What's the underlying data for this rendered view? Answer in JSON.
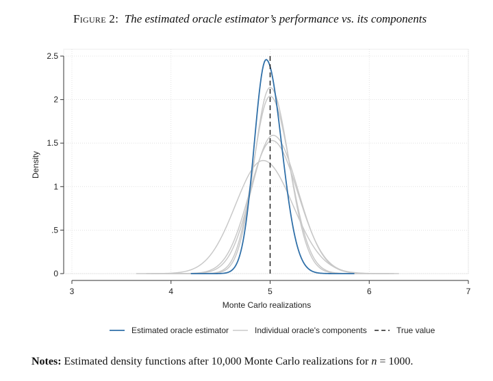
{
  "caption": {
    "figure_label": "Figure 2:",
    "title": "The estimated oracle estimator’s performance vs. its components"
  },
  "notes": {
    "label": "Notes:",
    "text_before": "Estimated density functions after 10,000 Monte Carlo realizations for ",
    "var": "n",
    "text_after": " = 1000."
  },
  "chart_data": {
    "type": "line",
    "xlabel": "Monte Carlo realizations",
    "ylabel": "Density",
    "xlim": [
      3,
      7
    ],
    "ylim": [
      0,
      2.5
    ],
    "x_ticks": [
      3,
      4,
      5,
      6,
      7
    ],
    "y_ticks": [
      0,
      0.5,
      1,
      1.5,
      2,
      2.5
    ],
    "x_tick_labels": [
      "3",
      "4",
      "5",
      "6",
      "7"
    ],
    "y_tick_labels": [
      "0",
      ".5",
      "1",
      "1.5",
      "2",
      "2.5"
    ],
    "grid": true,
    "legend_position": "bottom",
    "true_value": 5,
    "colors": {
      "oracle": "#2f6fa8",
      "components": "#c8c8c8",
      "true_value": "#222222"
    },
    "series": [
      {
        "name": "Estimated oracle estimator",
        "role": "oracle",
        "mean": 4.96,
        "peak": 2.46,
        "sd_left": 0.12,
        "sd_right": 0.155,
        "start": 4.2,
        "end": 5.85
      },
      {
        "name": "Individual oracle's components",
        "role": "component",
        "mean": 5.0,
        "peak": 2.14,
        "sd_left": 0.16,
        "sd_right": 0.19,
        "start": 4.0,
        "end": 6.0
      },
      {
        "role": "component",
        "mean": 5.0,
        "peak": 2.04,
        "sd_left": 0.17,
        "sd_right": 0.2,
        "start": 3.95,
        "end": 6.05
      },
      {
        "role": "component",
        "mean": 5.03,
        "peak": 1.59,
        "sd_left": 0.22,
        "sd_right": 0.25,
        "start": 3.8,
        "end": 6.2
      },
      {
        "role": "component",
        "mean": 5.02,
        "peak": 1.53,
        "sd_left": 0.23,
        "sd_right": 0.26,
        "start": 3.75,
        "end": 6.25
      },
      {
        "role": "component",
        "mean": 4.93,
        "peak": 1.3,
        "sd_left": 0.28,
        "sd_right": 0.3,
        "start": 3.65,
        "end": 6.3
      }
    ],
    "legend": [
      {
        "label": "Estimated oracle estimator",
        "role": "oracle"
      },
      {
        "label": "Individual oracle's components",
        "role": "component"
      },
      {
        "label": "True value",
        "role": "true_value"
      }
    ]
  }
}
